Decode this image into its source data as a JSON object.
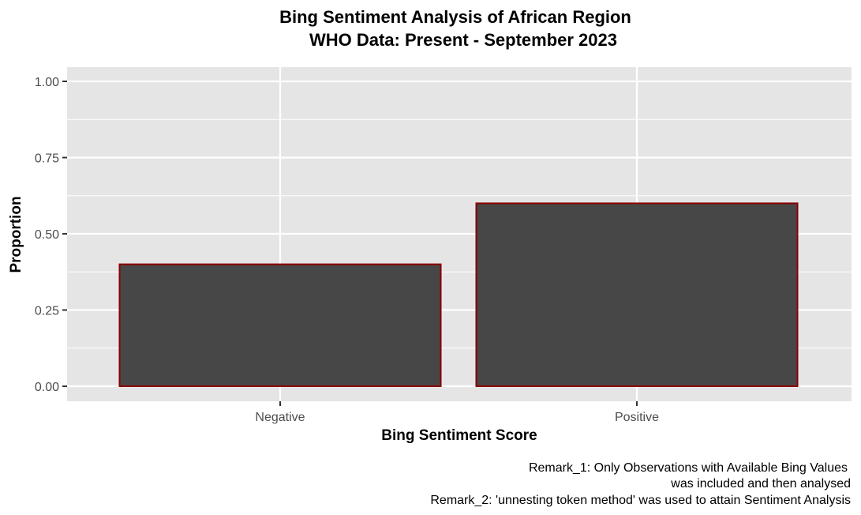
{
  "chart_data": {
    "type": "bar",
    "title_lines": [
      "Bing Sentiment Analysis of African Region",
      "WHO Data: Present - September 2023"
    ],
    "xlabel": "Bing Sentiment Score",
    "ylabel": "Proportion",
    "categories": [
      "Negative",
      "Positive"
    ],
    "values": [
      0.4,
      0.6
    ],
    "ylim": [
      0,
      1
    ],
    "yticks": [
      0.0,
      0.25,
      0.5,
      0.75,
      1.0
    ],
    "ytick_labels": [
      "0.00",
      "0.25",
      "0.50",
      "0.75",
      "1.00"
    ],
    "grid": true,
    "legend": "none",
    "caption_lines": [
      "Remark_1: Only Observations with Available Bing Values",
      "was included and then analysed",
      "Remark_2: 'unnesting token method' was used to attain Sentiment Analysis"
    ],
    "colors": {
      "panel_background": "#e5e5e5",
      "grid_line": "#ffffff",
      "bar_fill": "#474747",
      "bar_outline": "#8b0000",
      "tick_label": "#4d4d4d",
      "tick_mark": "#333333",
      "text": "#000000"
    }
  }
}
